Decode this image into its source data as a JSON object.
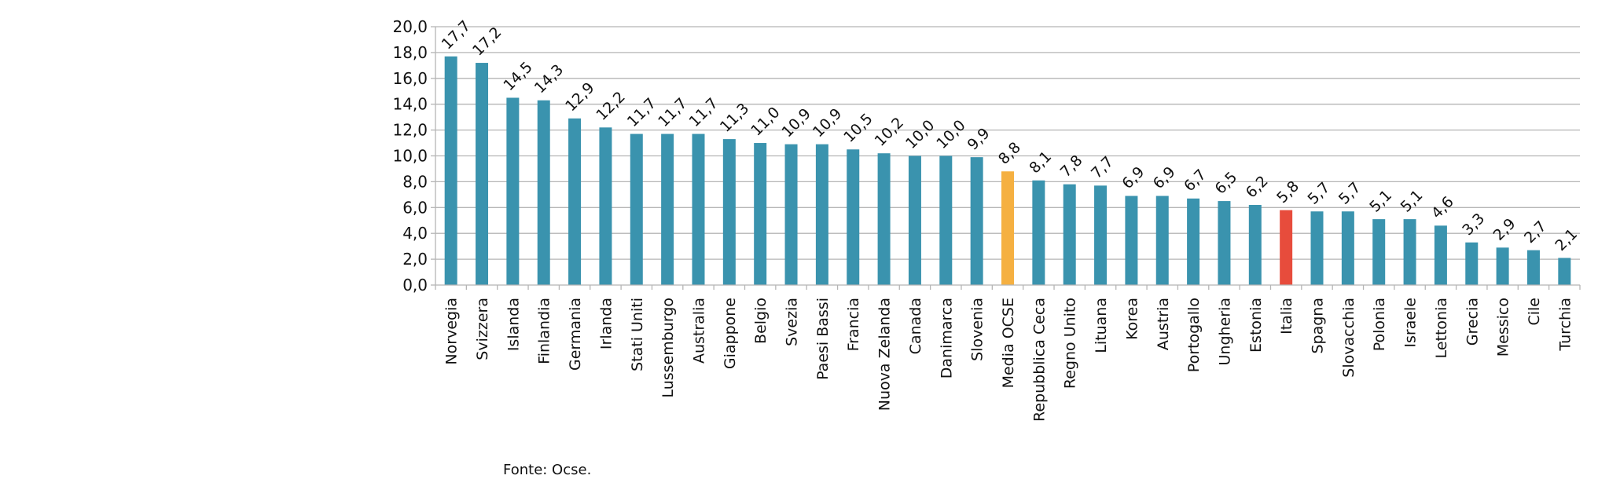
{
  "chart_data": {
    "type": "bar",
    "title": "",
    "xlabel": "",
    "ylabel": "",
    "ylim": [
      0,
      20
    ],
    "yticks": [
      "0,0",
      "2,0",
      "4,0",
      "6,0",
      "8,0",
      "10,0",
      "12,0",
      "14,0",
      "16,0",
      "18,0",
      "20,0"
    ],
    "grid": true,
    "legend": "none",
    "categories": [
      "Norvegia",
      "Svizzera",
      "Islanda",
      "Finlandia",
      "Germania",
      "Irlanda",
      "Stati Uniti",
      "Lussemburgo",
      "Australia",
      "Giappone",
      "Belgio",
      "Svezia",
      "Paesi Bassi",
      "Francia",
      "Nuova Zelanda",
      "Canada",
      "Danimarca",
      "Slovenia",
      "Media OCSE",
      "Repubblica Ceca",
      "Regno Unito",
      "Lituana",
      "Korea",
      "Austria",
      "Portogallo",
      "Ungheria",
      "Estonia",
      "Italia",
      "Spagna",
      "Slovacchia",
      "Polonia",
      "Israele",
      "Lettonia",
      "Grecia",
      "Messico",
      "Cile",
      "Turchia"
    ],
    "values": [
      17.7,
      17.2,
      14.5,
      14.3,
      12.9,
      12.2,
      11.7,
      11.7,
      11.7,
      11.3,
      11.0,
      10.9,
      10.9,
      10.5,
      10.2,
      10.0,
      10.0,
      9.9,
      8.8,
      8.1,
      7.8,
      7.7,
      6.9,
      6.9,
      6.7,
      6.5,
      6.2,
      5.8,
      5.7,
      5.7,
      5.1,
      5.1,
      4.6,
      3.3,
      2.9,
      2.7,
      2.1
    ],
    "value_labels": [
      "17,7",
      "17,2",
      "14,5",
      "14,3",
      "12,9",
      "12,2",
      "11,7",
      "11,7",
      "11,7",
      "11,3",
      "11,0",
      "10,9",
      "10,9",
      "10,5",
      "10,2",
      "10,0",
      "10,0",
      "9,9",
      "8,8",
      "8,1",
      "7,8",
      "7,7",
      "6,9",
      "6,9",
      "6,7",
      "6,5",
      "6,2",
      "5,8",
      "5,7",
      "5,7",
      "5,1",
      "5,1",
      "4,6",
      "3,3",
      "2,9",
      "2,7",
      "2,1"
    ],
    "highlight": {
      "Media OCSE": "#F5B041",
      "Italia": "#E74C3C"
    },
    "bar_color": "#3A93AE",
    "grid_color": "#B5B5B5"
  },
  "source": "Fonte: Ocse."
}
